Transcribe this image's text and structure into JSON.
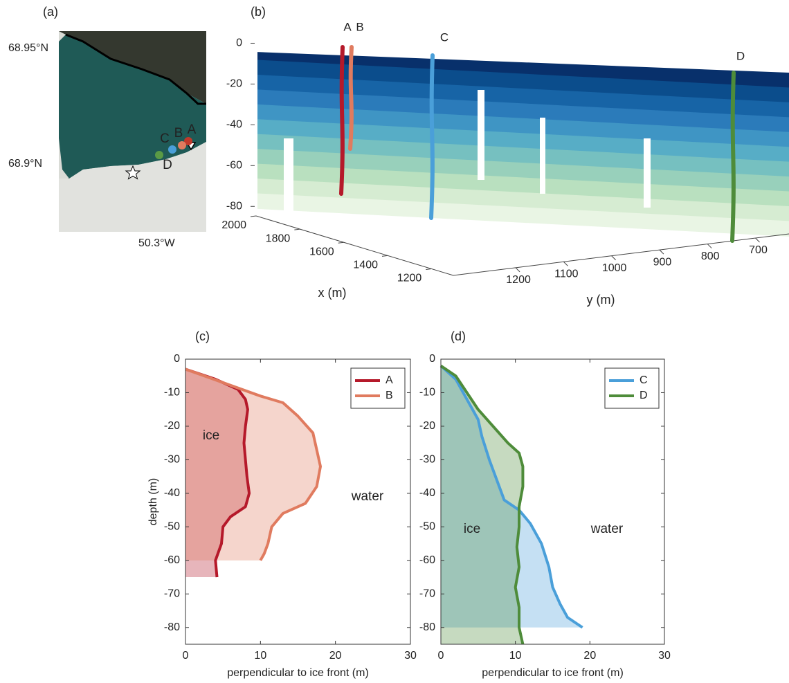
{
  "chart_data": [
    {
      "type": "map",
      "panel": "(a)",
      "lat_labels": [
        "68.95°N",
        "68.9°N"
      ],
      "lon_labels": [
        "50.3°W"
      ],
      "sites": [
        {
          "name": "A",
          "color": "#c0392b"
        },
        {
          "name": "B",
          "color": "#e07b5f"
        },
        {
          "name": "C",
          "color": "#4a9fd9"
        },
        {
          "name": "D",
          "color": "#5a9a45"
        }
      ]
    },
    {
      "type": "point-cloud",
      "panel": "(b)",
      "zlim": [
        -85,
        10
      ],
      "zticks": [
        0,
        -20,
        -40,
        -60,
        -80
      ],
      "xlabel": "x (m)",
      "xlim": [
        1100,
        2000
      ],
      "xticks": [
        2000,
        1800,
        1600,
        1400,
        1200
      ],
      "ylabel": "y (m)",
      "ylim": [
        1330,
        630
      ],
      "yticks": [
        1200,
        1100,
        1000,
        900,
        800,
        700
      ],
      "colors": [
        "#08306b",
        "#0b4d8c",
        "#1764a6",
        "#2b7bba",
        "#3f95c4",
        "#57adc6",
        "#76c0c0",
        "#98d0bb",
        "#b9e0bf",
        "#d6ecd2",
        "#e9f5e4"
      ],
      "profiles": [
        {
          "name": "A",
          "color": "#b5192a"
        },
        {
          "name": "B",
          "color": "#e07b5f"
        },
        {
          "name": "C",
          "color": "#4a9fd9"
        },
        {
          "name": "D",
          "color": "#4e8c3a"
        }
      ]
    },
    {
      "type": "line",
      "panel": "(c)",
      "xlabel": "perpendicular to ice front (m)",
      "ylabel": "depth (m)",
      "xlim": [
        0,
        30
      ],
      "xticks": [
        0,
        10,
        20,
        30
      ],
      "ylim": [
        -85,
        0
      ],
      "yticks": [
        0,
        -10,
        -20,
        -30,
        -40,
        -50,
        -60,
        -70,
        -80
      ],
      "legend": "upper right",
      "annotations": [
        "ice",
        "water"
      ],
      "series": [
        {
          "name": "A",
          "color": "#b5192a",
          "x": [
            0,
            4,
            7,
            8,
            8.3,
            8,
            7.8,
            8,
            8.2,
            8.5,
            8,
            6,
            5,
            4.8,
            4,
            4.2
          ],
          "y": [
            -3,
            -6,
            -9,
            -12,
            -15,
            -20,
            -25,
            -30,
            -35,
            -40,
            -44,
            -47,
            -50,
            -55,
            -60,
            -65
          ]
        },
        {
          "name": "B",
          "color": "#e07b5f",
          "x": [
            0,
            5,
            10,
            13,
            15,
            17,
            17.5,
            18,
            17.5,
            16,
            13,
            11.5,
            11,
            10.5,
            10
          ],
          "y": [
            -3,
            -7,
            -11,
            -13,
            -17,
            -22,
            -27,
            -32,
            -38,
            -43,
            -46,
            -50,
            -55,
            -58,
            -60
          ]
        }
      ]
    },
    {
      "type": "line",
      "panel": "(d)",
      "xlabel": "perpendicular to ice front (m)",
      "xlim": [
        0,
        30
      ],
      "xticks": [
        0,
        10,
        20,
        30
      ],
      "ylim": [
        -85,
        0
      ],
      "yticks": [
        0,
        -10,
        -20,
        -30,
        -40,
        -50,
        -60,
        -70,
        -80
      ],
      "legend": "upper right",
      "annotations": [
        "ice",
        "water"
      ],
      "series": [
        {
          "name": "C",
          "color": "#4a9fd9",
          "x": [
            0,
            2,
            3.5,
            5,
            5.5,
            6.5,
            7.5,
            8.5,
            10.5,
            12,
            13.5,
            14.5,
            15,
            16,
            17,
            19
          ],
          "y": [
            -2,
            -6,
            -12,
            -18,
            -23,
            -30,
            -36,
            -42,
            -45,
            -49,
            -55,
            -62,
            -68,
            -73,
            -77,
            -80
          ]
        },
        {
          "name": "D",
          "color": "#4e8c3a",
          "x": [
            0,
            2,
            3.5,
            5,
            7,
            9,
            10.5,
            11,
            11,
            10.5,
            10.5,
            10.2,
            10.5,
            10,
            10.5,
            10.5,
            11
          ],
          "y": [
            -2,
            -5,
            -10,
            -15,
            -20,
            -25,
            -28,
            -32,
            -38,
            -44,
            -50,
            -56,
            -62,
            -68,
            -74,
            -80,
            -85
          ]
        }
      ]
    }
  ]
}
